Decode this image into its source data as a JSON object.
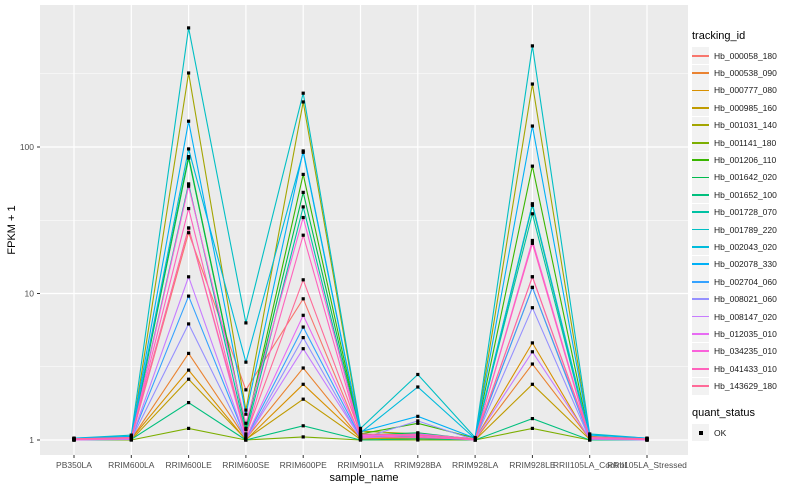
{
  "figure": {
    "background": "#FFFFFF",
    "panel_background": "#EBEBEB",
    "grid_major_color": "#FFFFFF",
    "grid_minor_color": "#FFFFFF",
    "axis_text_color": "#4D4D4D",
    "axis_title_color": "#000000",
    "tick_color": "#333333",
    "point_color": "#000000"
  },
  "chart_data": {
    "type": "line",
    "title": "",
    "xlabel": "sample_name",
    "ylabel": "FPKM + 1",
    "y_scale": "log10",
    "y_ticks": [
      1,
      10,
      100
    ],
    "y_minor_breaks_log": [
      0.5,
      1.5,
      2.5
    ],
    "ylim_log": [
      -0.1,
      2.97
    ],
    "grid": true,
    "legend_position": "right",
    "legend_title": "tracking_id",
    "quant_legend": {
      "title": "quant_status",
      "label": "OK"
    },
    "categories": [
      "PB350LA",
      "RRIM600LA",
      "RRIM600LE",
      "RRIM600SE",
      "RRIM600PE",
      "RRIM901LA",
      "RRIM928BA",
      "RRIM928LA",
      "RRIM928LE",
      "RRII105LA_Control",
      "RRII105LA_Stressed"
    ],
    "series": [
      {
        "name": "Hb_000058_180",
        "color": "#F8766D",
        "values": [
          1.02,
          1.03,
          26,
          2.2,
          9.2,
          1.05,
          1.08,
          1.02,
          11,
          1.05,
          1.02
        ]
      },
      {
        "name": "Hb_000538_090",
        "color": "#EA8331",
        "values": [
          1.0,
          1.01,
          3.9,
          1.02,
          3.1,
          1.02,
          1.04,
          1.0,
          3.3,
          1.02,
          1.0
        ]
      },
      {
        "name": "Hb_000777_080",
        "color": "#D89000",
        "values": [
          1.01,
          1.02,
          3.0,
          1.0,
          2.4,
          1.03,
          1.02,
          1.01,
          4.6,
          1.0,
          1.01
        ]
      },
      {
        "name": "Hb_000985_160",
        "color": "#C09B00",
        "values": [
          1.0,
          1.0,
          2.6,
          1.01,
          1.9,
          1.01,
          1.05,
          1.0,
          2.4,
          1.01,
          1.0
        ]
      },
      {
        "name": "Hb_001031_140",
        "color": "#A3A500",
        "values": [
          1.01,
          1.02,
          320,
          1.6,
          203,
          1.15,
          1.1,
          1.02,
          269,
          1.06,
          1.01
        ]
      },
      {
        "name": "Hb_001141_180",
        "color": "#7CAE00",
        "values": [
          1.0,
          1.0,
          1.2,
          1.0,
          1.05,
          1.0,
          1.0,
          1.0,
          1.2,
          1.0,
          1.0
        ]
      },
      {
        "name": "Hb_001206_110",
        "color": "#39B600",
        "values": [
          1.02,
          1.04,
          86,
          1.2,
          65,
          1.1,
          1.3,
          1.03,
          74,
          1.04,
          1.02
        ]
      },
      {
        "name": "Hb_001642_020",
        "color": "#00BB4E",
        "values": [
          1.01,
          1.02,
          84,
          1.18,
          49,
          1.08,
          1.12,
          1.01,
          40,
          1.03,
          1.01
        ]
      },
      {
        "name": "Hb_001652_100",
        "color": "#00BF7D",
        "values": [
          1.0,
          1.01,
          1.8,
          1.0,
          1.25,
          1.0,
          1.02,
          1.0,
          1.4,
          1.0,
          1.0
        ]
      },
      {
        "name": "Hb_001728_070",
        "color": "#00C1A3",
        "values": [
          1.02,
          1.03,
          56,
          1.1,
          39,
          1.05,
          1.06,
          1.02,
          35,
          1.02,
          1.02
        ]
      },
      {
        "name": "Hb_001789_220",
        "color": "#00BFC4",
        "values": [
          1.03,
          1.08,
          650,
          6.3,
          233,
          1.2,
          2.8,
          1.04,
          490,
          1.1,
          1.03
        ]
      },
      {
        "name": "Hb_002043_020",
        "color": "#00BBDB",
        "values": [
          1.02,
          1.05,
          97,
          3.4,
          92,
          1.12,
          2.3,
          1.02,
          41,
          1.05,
          1.02
        ]
      },
      {
        "name": "Hb_002078_330",
        "color": "#00B0F6",
        "values": [
          1.03,
          1.06,
          150,
          1.5,
          94,
          1.14,
          1.45,
          1.03,
          139,
          1.08,
          1.03
        ]
      },
      {
        "name": "Hb_002704_060",
        "color": "#35A2FF",
        "values": [
          1.01,
          1.02,
          9.6,
          1.02,
          5.9,
          1.04,
          1.1,
          1.01,
          11,
          1.02,
          1.01
        ]
      },
      {
        "name": "Hb_008021_060",
        "color": "#9590FF",
        "values": [
          1.0,
          1.01,
          6.2,
          1.0,
          5.0,
          1.02,
          1.35,
          1.0,
          8.0,
          1.01,
          1.0
        ]
      },
      {
        "name": "Hb_008147_020",
        "color": "#C77CFF",
        "values": [
          1.01,
          1.02,
          13,
          1.01,
          4.2,
          1.03,
          1.08,
          1.01,
          4.0,
          1.02,
          1.01
        ]
      },
      {
        "name": "Hb_012035_010",
        "color": "#E76BF3",
        "values": [
          1.02,
          1.03,
          28,
          1.03,
          7.1,
          1.06,
          1.1,
          1.02,
          13,
          1.03,
          1.02
        ]
      },
      {
        "name": "Hb_034235_010",
        "color": "#FA62DB",
        "values": [
          1.0,
          1.02,
          54,
          1.3,
          33,
          1.08,
          1.06,
          1.0,
          23,
          1.04,
          1.0
        ]
      },
      {
        "name": "Hb_041433_010",
        "color": "#FF62BC",
        "values": [
          1.01,
          1.03,
          38,
          1.05,
          25,
          1.05,
          1.04,
          1.01,
          22,
          1.02,
          1.01
        ]
      },
      {
        "name": "Hb_143629_180",
        "color": "#FF6A98",
        "values": [
          1.02,
          1.04,
          28,
          1.08,
          12.4,
          1.1,
          1.08,
          1.02,
          13,
          1.05,
          1.02
        ]
      }
    ]
  }
}
